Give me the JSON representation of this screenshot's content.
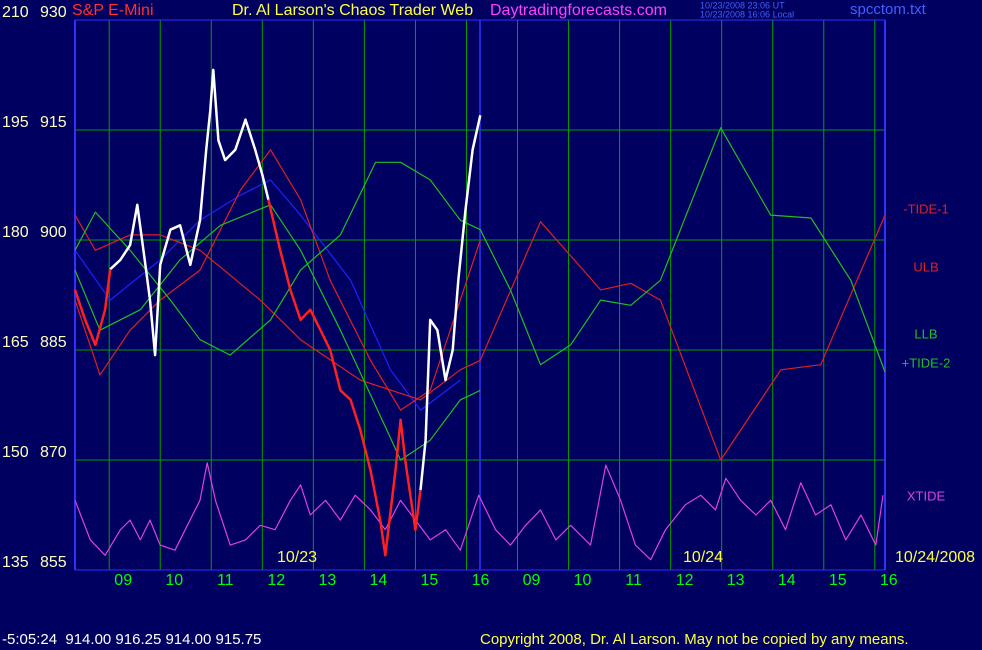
{
  "header": {
    "instrument": "S&P E-Mini",
    "title": "Dr. Al Larson's Chaos Trader Web",
    "site": "Daytradingforecasts.com",
    "time_ut": "10/23/2008 23:06 UT",
    "time_local": "10/23/2008 16:06 Local",
    "file": "spcctom.txt"
  },
  "footer": {
    "quote": "-5:05:24  914.00 916.25 914.00 915.75",
    "copyright": "Copyright 2008, Dr. Al Larson. May not be copied by any means."
  },
  "chart_data": {
    "type": "line",
    "ylim": [
      855,
      930
    ],
    "yticks": [
      855,
      870,
      885,
      900,
      915,
      930
    ],
    "y2lim": [
      135,
      210
    ],
    "y2ticks": [
      135,
      150,
      165,
      180,
      195,
      210
    ],
    "xlim": [
      8.33,
      24.2
    ],
    "xticks": [
      {
        "value": 9,
        "label": "09"
      },
      10,
      11,
      12,
      13,
      14,
      15,
      16,
      {
        "value": 17,
        "label": "09"
      },
      {
        "value": 18,
        "label": "10"
      },
      {
        "value": 19,
        "label": "11"
      },
      {
        "value": 20,
        "label": "12"
      },
      {
        "value": 21,
        "label": "13"
      },
      {
        "value": 22,
        "label": "14"
      },
      {
        "value": 23,
        "label": "15"
      },
      {
        "value": 24,
        "label": "16"
      }
    ],
    "grid": true,
    "grid_color": "#00a000",
    "annotations": [
      "10/23",
      "10/24",
      "10/24/2008"
    ],
    "series": [
      {
        "color": "#2020ff",
        "x": [
          8.33,
          9.02,
          10,
          10.78,
          11.57,
          12.16,
          12.75,
          13.73,
          14.51,
          15.1,
          15.88
        ],
        "values": [
          898.6,
          891.8,
          897.3,
          902.7,
          906.1,
          908.2,
          903.4,
          894.5,
          882.3,
          876.8,
          880.9
        ]
      },
      {
        "name": "-TIDE-1",
        "color": "#e02020",
        "x": [
          8.33,
          8.73,
          9.41,
          10,
          10.78,
          11.96,
          12.75,
          13.92,
          15.1,
          15.88,
          16.27,
          17.45,
          18.63,
          19.22,
          19.8,
          20.98,
          22.16,
          22.94,
          24.2
        ],
        "values": [
          903.4,
          898.6,
          900.7,
          900.7,
          898.6,
          891.8,
          886.4,
          880.9,
          878.2,
          882.3,
          883.6,
          902.5,
          893.2,
          894.1,
          891.8,
          870,
          882.3,
          883,
          903.4
        ]
      },
      {
        "name": "ULB",
        "color": "#e02020",
        "x": [
          8.33,
          8.82,
          9.41,
          10,
          10.78,
          11.57,
          12.16,
          12.75,
          13.33,
          14.12,
          14.71,
          15.29,
          15.88,
          16.27
        ],
        "values": [
          891.8,
          881.6,
          887.7,
          891.8,
          895.9,
          906.8,
          912.3,
          905.5,
          894.5,
          883.6,
          876.8,
          879.5,
          891.8,
          900
        ]
      },
      {
        "name": "LLB",
        "color": "#20c020",
        "x": [
          8.33,
          8.82,
          9.61,
          10.39,
          11.18,
          12.16,
          12.75,
          13.53,
          14.12,
          14.71,
          15.29,
          15.88,
          16.27
        ],
        "values": [
          895.9,
          887.7,
          890.5,
          897.3,
          902,
          904.8,
          898.6,
          887.7,
          878.9,
          870,
          872.7,
          878.2,
          879.5
        ]
      },
      {
        "name": "+TIDE-2",
        "color": "#20c020",
        "x": [
          8.33,
          8.73,
          9.41,
          10.2,
          10.78,
          11.37,
          12.16,
          12.75,
          13.53,
          14.22,
          14.71,
          15.29,
          15.88,
          16.27,
          16.86,
          17.45,
          18.04,
          18.63,
          19.22,
          19.8,
          20.98,
          21.96,
          22.75,
          23.53,
          24.2
        ],
        "values": [
          898.6,
          903.8,
          898.6,
          891.8,
          886.4,
          884.3,
          889.1,
          895.9,
          900.7,
          910.6,
          910.6,
          908.2,
          902.7,
          901.4,
          893.2,
          883,
          885.7,
          891.8,
          891.1,
          894.5,
          915.3,
          903.4,
          903,
          894.5,
          882
        ]
      },
      {
        "name": "XTIDE",
        "color": "#e040e0",
        "x": [
          8.33,
          8.63,
          8.92,
          9.22,
          9.41,
          9.61,
          9.8,
          10,
          10.29,
          10.49,
          10.78,
          10.92,
          11.08,
          11.37,
          11.67,
          11.96,
          12.25,
          12.55,
          12.75,
          12.94,
          13.24,
          13.53,
          13.82,
          14.12,
          14.41,
          14.71,
          15,
          15.29,
          15.59,
          15.88,
          16.24,
          16.57,
          16.86,
          17.16,
          17.45,
          17.75,
          18.04,
          18.43,
          18.73,
          19.02,
          19.31,
          19.61,
          19.9,
          20.29,
          20.59,
          20.88,
          21.08,
          21.37,
          21.67,
          21.96,
          22.25,
          22.55,
          22.84,
          23.14,
          23.43,
          23.73,
          24.02,
          24.16
        ],
        "values": [
          864.5,
          859.1,
          857,
          860.5,
          861.8,
          859.1,
          861.8,
          858.4,
          857.7,
          860.5,
          864.5,
          869.6,
          864.5,
          858.4,
          859.1,
          861.1,
          860.5,
          864.5,
          866.6,
          862.5,
          864.5,
          861.8,
          865.2,
          863.2,
          860.5,
          864.5,
          861.8,
          859.1,
          860.5,
          857.7,
          865.2,
          860.5,
          858.4,
          861.1,
          863.2,
          859.1,
          861.1,
          858.4,
          869.3,
          864.5,
          858.4,
          856.4,
          860.5,
          863.9,
          865.2,
          863.2,
          867.5,
          864.5,
          862.5,
          864.5,
          860.5,
          866.9,
          862.5,
          863.9,
          859.1,
          862.5,
          858.4,
          865.2
        ]
      },
      {
        "color": "#ffffff",
        "x": [
          9.02,
          9.22,
          9.41,
          9.55,
          9.71,
          9.8,
          9.9,
          10,
          10.2,
          10.39,
          10.59,
          10.78,
          10.9,
          10.98,
          11.04,
          11.14,
          11.27,
          11.47,
          11.67,
          11.86,
          12,
          12.12,
          12.5,
          15.1,
          15.2,
          15.29,
          15.43,
          15.59,
          15.73,
          15.84,
          15.98,
          16.12,
          16.27
        ],
        "values": [
          896,
          897.3,
          899.3,
          904.8,
          896.6,
          891.8,
          884.3,
          896.6,
          901.4,
          902,
          896.6,
          902.7,
          912.3,
          917.7,
          923.2,
          913.6,
          910.9,
          912.3,
          916.4,
          912.3,
          908.9,
          905.5,
          null,
          865.9,
          872.7,
          889.1,
          887.7,
          880.9,
          885,
          894.5,
          904.1,
          912.3,
          917
        ]
      },
      {
        "color": "#ff2020",
        "x": [
          8.33,
          8.53,
          8.73,
          8.92,
          9.02,
          10.5,
          12.12,
          12.35,
          12.55,
          12.75,
          12.94,
          13.14,
          13.33,
          13.53,
          13.73,
          13.92,
          14.12,
          14.31,
          14.41,
          14.61,
          14.71,
          14.8,
          15,
          15.1
        ],
        "values": [
          893.2,
          889.1,
          885.7,
          890.5,
          896,
          null,
          905.5,
          898.6,
          893.2,
          889.1,
          890.5,
          887.7,
          885,
          879.5,
          878.2,
          874.1,
          868.6,
          861.8,
          857,
          868.6,
          875.5,
          870,
          860.5,
          865.9
        ]
      }
    ]
  }
}
